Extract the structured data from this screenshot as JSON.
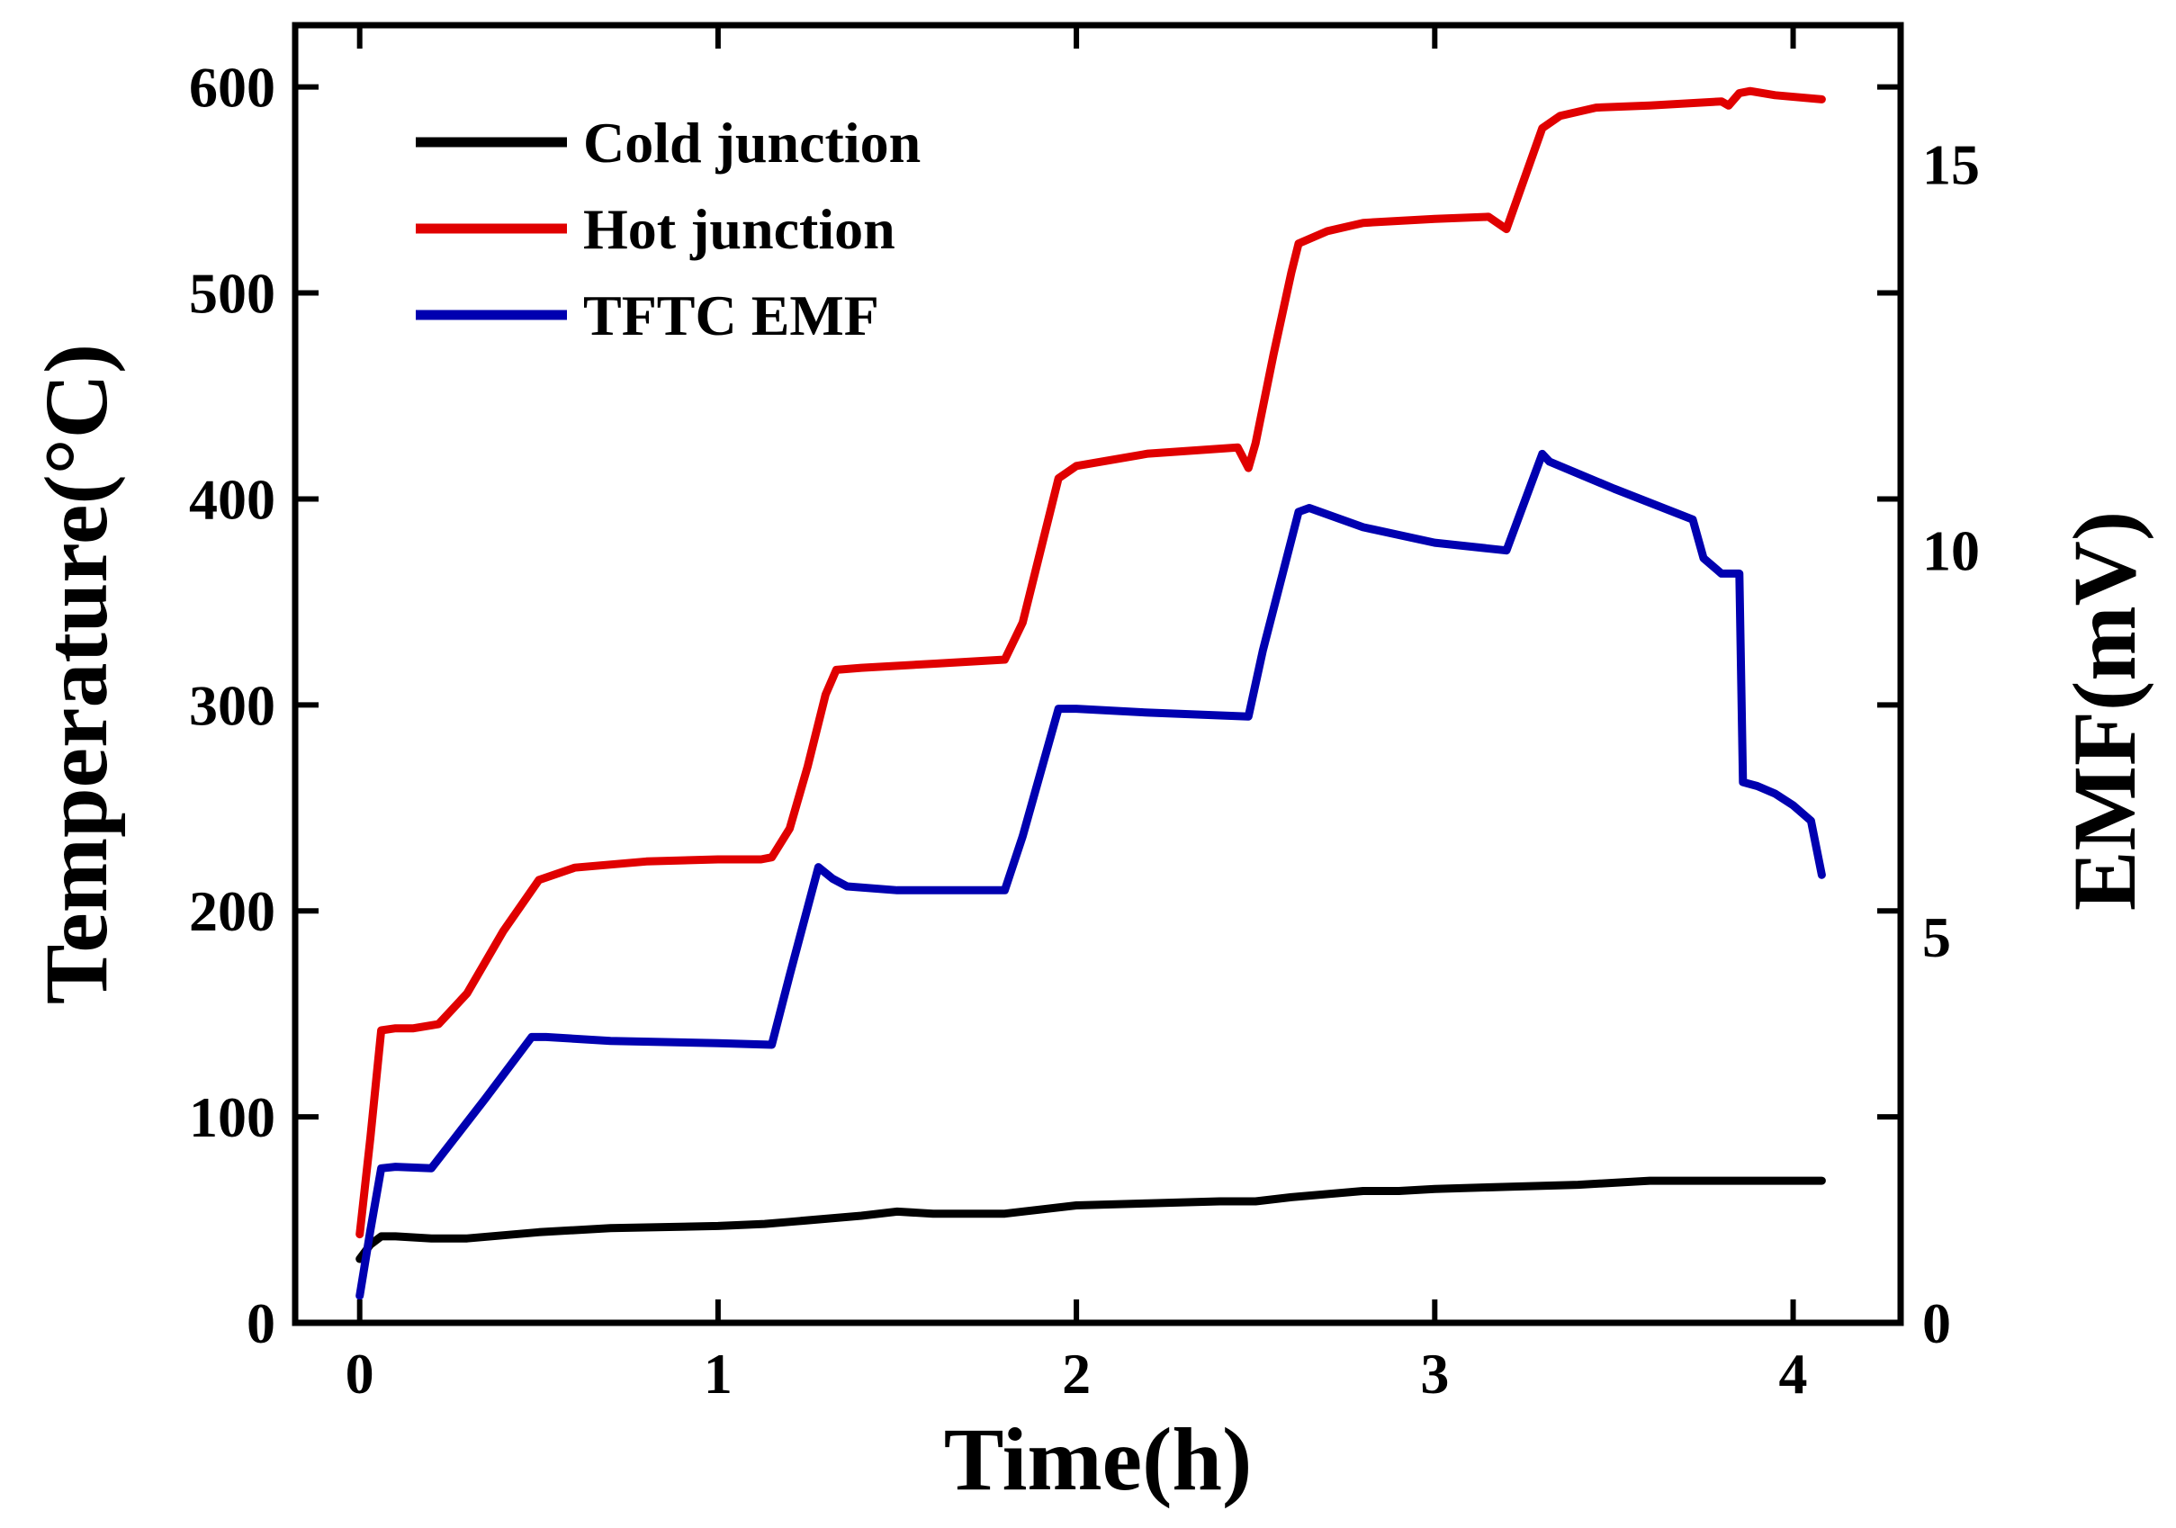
{
  "chart_data": {
    "type": "line",
    "title": "",
    "xlabel": "Time(h)",
    "ylabel_left": "Temperature(°C)",
    "ylabel_right": "EMF(mV)",
    "xlim": [
      -0.18,
      4.3
    ],
    "ylim_left": [
      0,
      630
    ],
    "ylim_right": [
      0,
      16.8
    ],
    "xticks": [
      0,
      1,
      2,
      3,
      4
    ],
    "yticks_left": [
      0,
      100,
      200,
      300,
      400,
      500,
      600
    ],
    "yticks_right": [
      0,
      5,
      10,
      15
    ],
    "legend_position": "top-left",
    "grid": false,
    "series": [
      {
        "name": "Cold junction",
        "axis": "left",
        "color": "#000000",
        "x": [
          0,
          0.03,
          0.06,
          0.1,
          0.2,
          0.3,
          0.5,
          0.7,
          1.0,
          1.13,
          1.2,
          1.4,
          1.5,
          1.6,
          1.8,
          2.0,
          2.2,
          2.4,
          2.5,
          2.6,
          2.8,
          2.9,
          3.0,
          3.2,
          3.4,
          3.6,
          3.8,
          4.08
        ],
        "y": [
          31,
          38,
          42,
          42,
          41,
          41,
          44,
          46,
          47,
          48,
          49,
          52,
          54,
          53,
          53,
          57,
          58,
          59,
          59,
          61,
          64,
          64,
          65,
          66,
          67,
          69,
          69,
          69
        ]
      },
      {
        "name": "Hot junction",
        "axis": "left",
        "color": "#e00000",
        "x": [
          0,
          0.03,
          0.06,
          0.1,
          0.15,
          0.22,
          0.3,
          0.4,
          0.5,
          0.6,
          0.8,
          1.0,
          1.12,
          1.15,
          1.2,
          1.25,
          1.3,
          1.33,
          1.4,
          1.6,
          1.8,
          1.85,
          1.95,
          2.0,
          2.2,
          2.45,
          2.48,
          2.5,
          2.55,
          2.6,
          2.62,
          2.7,
          2.8,
          3.0,
          3.15,
          3.2,
          3.3,
          3.35,
          3.45,
          3.6,
          3.8,
          3.82,
          3.85,
          3.88,
          3.95,
          4.08
        ],
        "y": [
          43,
          90,
          142,
          143,
          143,
          145,
          160,
          190,
          215,
          221,
          224,
          225,
          225,
          226,
          240,
          270,
          305,
          317,
          318,
          320,
          322,
          340,
          410,
          416,
          422,
          425,
          415,
          427,
          470,
          510,
          524,
          530,
          534,
          536,
          537,
          531,
          580,
          586,
          590,
          591,
          593,
          591,
          597,
          598,
          596,
          594
        ]
      },
      {
        "name": "TFTC EMF",
        "axis": "right",
        "color": "#0000b0",
        "x": [
          0,
          0.03,
          0.06,
          0.1,
          0.2,
          0.25,
          0.35,
          0.48,
          0.52,
          0.7,
          1.0,
          1.15,
          1.2,
          1.28,
          1.32,
          1.36,
          1.5,
          1.8,
          1.85,
          1.95,
          2.0,
          2.2,
          2.48,
          2.52,
          2.62,
          2.65,
          2.8,
          3.0,
          3.2,
          3.3,
          3.32,
          3.5,
          3.72,
          3.75,
          3.8,
          3.85,
          3.86,
          3.9,
          3.95,
          4.0,
          4.05,
          4.08
        ],
        "y": [
          0.35,
          1.2,
          2.0,
          2.02,
          2.0,
          2.3,
          2.9,
          3.7,
          3.7,
          3.65,
          3.62,
          3.6,
          4.5,
          5.9,
          5.75,
          5.65,
          5.6,
          5.6,
          6.3,
          7.95,
          7.95,
          7.9,
          7.85,
          8.7,
          10.5,
          10.55,
          10.3,
          10.1,
          10.0,
          11.25,
          11.15,
          10.8,
          10.4,
          9.9,
          9.7,
          9.7,
          7.0,
          6.95,
          6.85,
          6.7,
          6.5,
          5.8
        ]
      }
    ]
  }
}
